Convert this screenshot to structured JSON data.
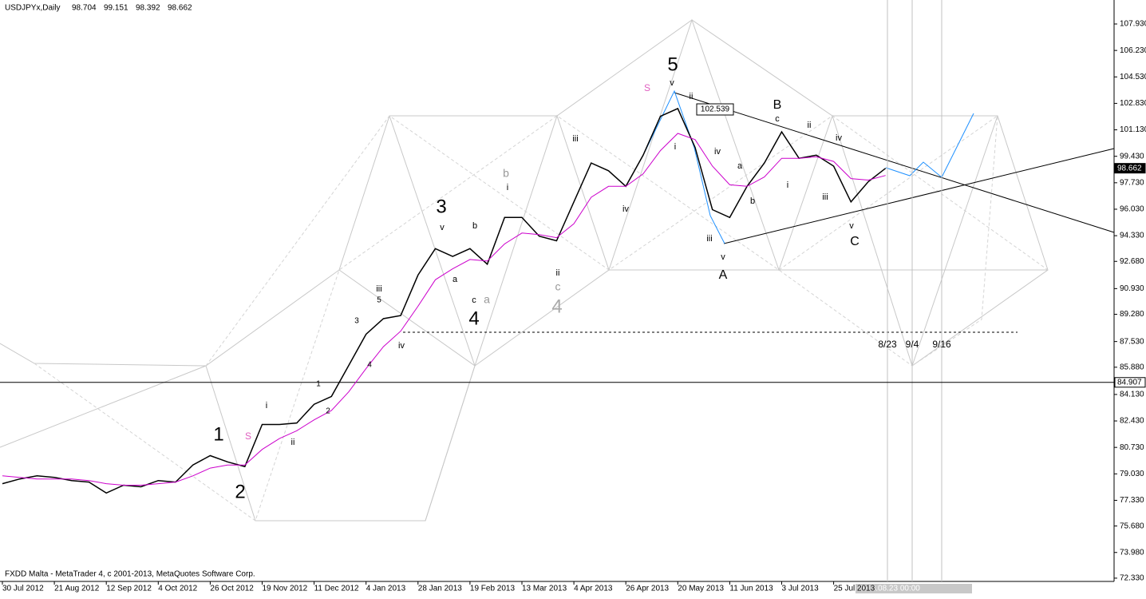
{
  "chart_data": {
    "type": "line",
    "title": "USDJPYx,Daily",
    "ohlc": [
      98.704,
      99.151,
      98.392,
      98.662
    ],
    "categories": [
      "30 Jul 2012",
      null,
      null,
      "21 Aug 2012",
      null,
      null,
      "12 Sep 2012",
      null,
      null,
      "4 Oct 2012",
      null,
      null,
      "26 Oct 2012",
      null,
      null,
      "19 Nov 2012",
      null,
      null,
      "11 Dec 2012",
      null,
      null,
      "4 Jan 2013",
      null,
      null,
      "28 Jan 2013",
      null,
      null,
      "19 Feb 2013",
      null,
      null,
      "13 Mar 2013",
      null,
      null,
      "4 Apr 2013",
      null,
      null,
      "26 Apr 2013",
      null,
      null,
      "20 May 2013",
      null,
      null,
      "11 Jun 2013",
      null,
      null,
      "3 Jul 2013",
      null,
      null,
      "25 Jul 2013",
      null,
      null,
      null
    ],
    "series": [
      {
        "color": "#000000",
        "values": [
          78.4,
          78.7,
          78.9,
          78.8,
          78.6,
          78.5,
          77.8,
          78.3,
          78.2,
          78.6,
          78.5,
          79.6,
          80.2,
          79.8,
          79.5,
          82.2,
          82.2,
          82.3,
          83.5,
          84.0,
          86.0,
          88.0,
          89.0,
          89.2,
          91.8,
          93.5,
          93.0,
          93.5,
          92.5,
          95.5,
          95.5,
          94.3,
          94.0,
          96.5,
          99.0,
          98.5,
          97.5,
          99.5,
          102.0,
          102.5,
          100.0,
          96.0,
          95.5,
          97.5,
          99.0,
          101.0,
          99.3,
          99.5,
          98.8,
          96.5,
          97.8,
          98.662
        ]
      },
      {
        "color": "#cc00cc",
        "values": [
          78.9,
          78.8,
          78.7,
          78.7,
          78.7,
          78.6,
          78.4,
          78.3,
          78.3,
          78.4,
          78.5,
          78.9,
          79.4,
          79.6,
          79.6,
          80.6,
          81.3,
          81.8,
          82.5,
          83.1,
          84.3,
          85.8,
          87.2,
          88.2,
          89.8,
          91.5,
          92.2,
          92.8,
          92.7,
          93.8,
          94.5,
          94.4,
          94.2,
          95.1,
          96.8,
          97.5,
          97.5,
          98.3,
          99.8,
          100.9,
          100.5,
          98.8,
          97.6,
          97.5,
          98.1,
          99.3,
          99.3,
          99.4,
          99.1,
          98.0,
          97.9,
          98.2
        ]
      }
    ],
    "ylim": [
      72.12,
      109.47
    ],
    "yticks": [
      107.93,
      106.23,
      104.53,
      102.83,
      101.13,
      99.43,
      97.73,
      96.03,
      94.33,
      92.68,
      90.93,
      89.28,
      87.53,
      85.88,
      84.13,
      82.43,
      80.73,
      79.03,
      77.33,
      75.68,
      73.98,
      72.33
    ],
    "ytick_labels": [
      "107.930",
      "106.230",
      "104.530",
      "102.830",
      "101.130",
      "99.430",
      "97.730",
      "96.030",
      "94.330",
      "92.680",
      "90.930",
      "89.280",
      "87.530",
      "85.880",
      "84.130",
      "82.430",
      "80.730",
      "79.030",
      "77.330",
      "75.680",
      "73.980",
      "72.330"
    ],
    "price_markers": [
      {
        "value": 84.907,
        "label": "84.907"
      },
      {
        "value": 98.662,
        "label": "98.662"
      }
    ],
    "annotations": [
      "5",
      "3",
      "1",
      "2",
      "4",
      "4",
      "A",
      "B",
      "C",
      "S",
      "S",
      "b",
      "a",
      "c",
      "v",
      "iii",
      "iv",
      "ii",
      "iii",
      "v",
      "i",
      "b",
      "a",
      "c",
      "iv",
      "i",
      "ii",
      "v",
      "iii",
      "a",
      "b",
      "c",
      "ii",
      "iv",
      "iii",
      "i",
      "v",
      "ii",
      "iv",
      "i",
      "102.539",
      "3",
      "4",
      "5",
      "1",
      "2"
    ],
    "time_lines": [
      "8/23",
      "9/4",
      "9/16"
    ],
    "cursor_time": "2013.08.23 00:00",
    "copyright": "FXDD Malta - MetaTrader 4, c 2001-2013, MetaQuotes Software Corp."
  }
}
